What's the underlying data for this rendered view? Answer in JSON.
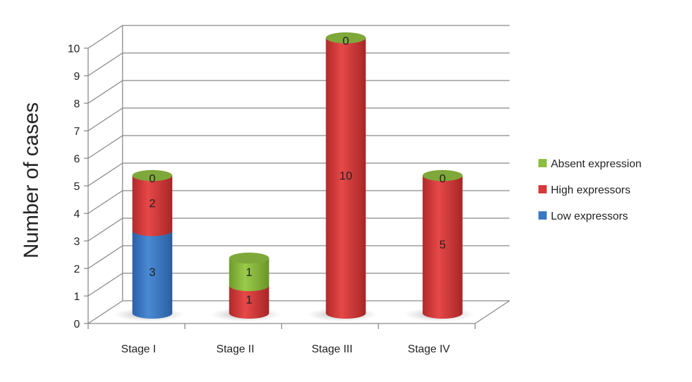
{
  "chart_data": {
    "type": "bar",
    "style": "3d-stacked-cylinder",
    "title": "",
    "xlabel": "",
    "ylabel": "Number of cases",
    "ylim": [
      0,
      10
    ],
    "yticks": [
      "0",
      "1",
      "2",
      "3",
      "4",
      "5",
      "6",
      "7",
      "8",
      "9",
      "10"
    ],
    "categories": [
      "Stage I",
      "Stage II",
      "Stage III",
      "Stage IV"
    ],
    "grid": true,
    "legend_position": "right",
    "series": [
      {
        "name": "Low expressors",
        "color": "#3a78c2",
        "values": [
          3,
          0,
          0,
          0
        ],
        "labels": [
          "3",
          null,
          null,
          null
        ]
      },
      {
        "name": "High expressors",
        "color": "#d63a3a",
        "values": [
          2,
          1,
          10,
          5
        ],
        "labels": [
          "2",
          "1",
          "10",
          "5"
        ]
      },
      {
        "name": "Absent expression",
        "color": "#8cbd3e",
        "values": [
          0,
          1,
          0,
          0
        ],
        "labels": [
          "0",
          "1",
          "0",
          "0"
        ]
      }
    ],
    "legend_order": [
      "Absent expression",
      "High expressors",
      "Low expressors"
    ]
  }
}
